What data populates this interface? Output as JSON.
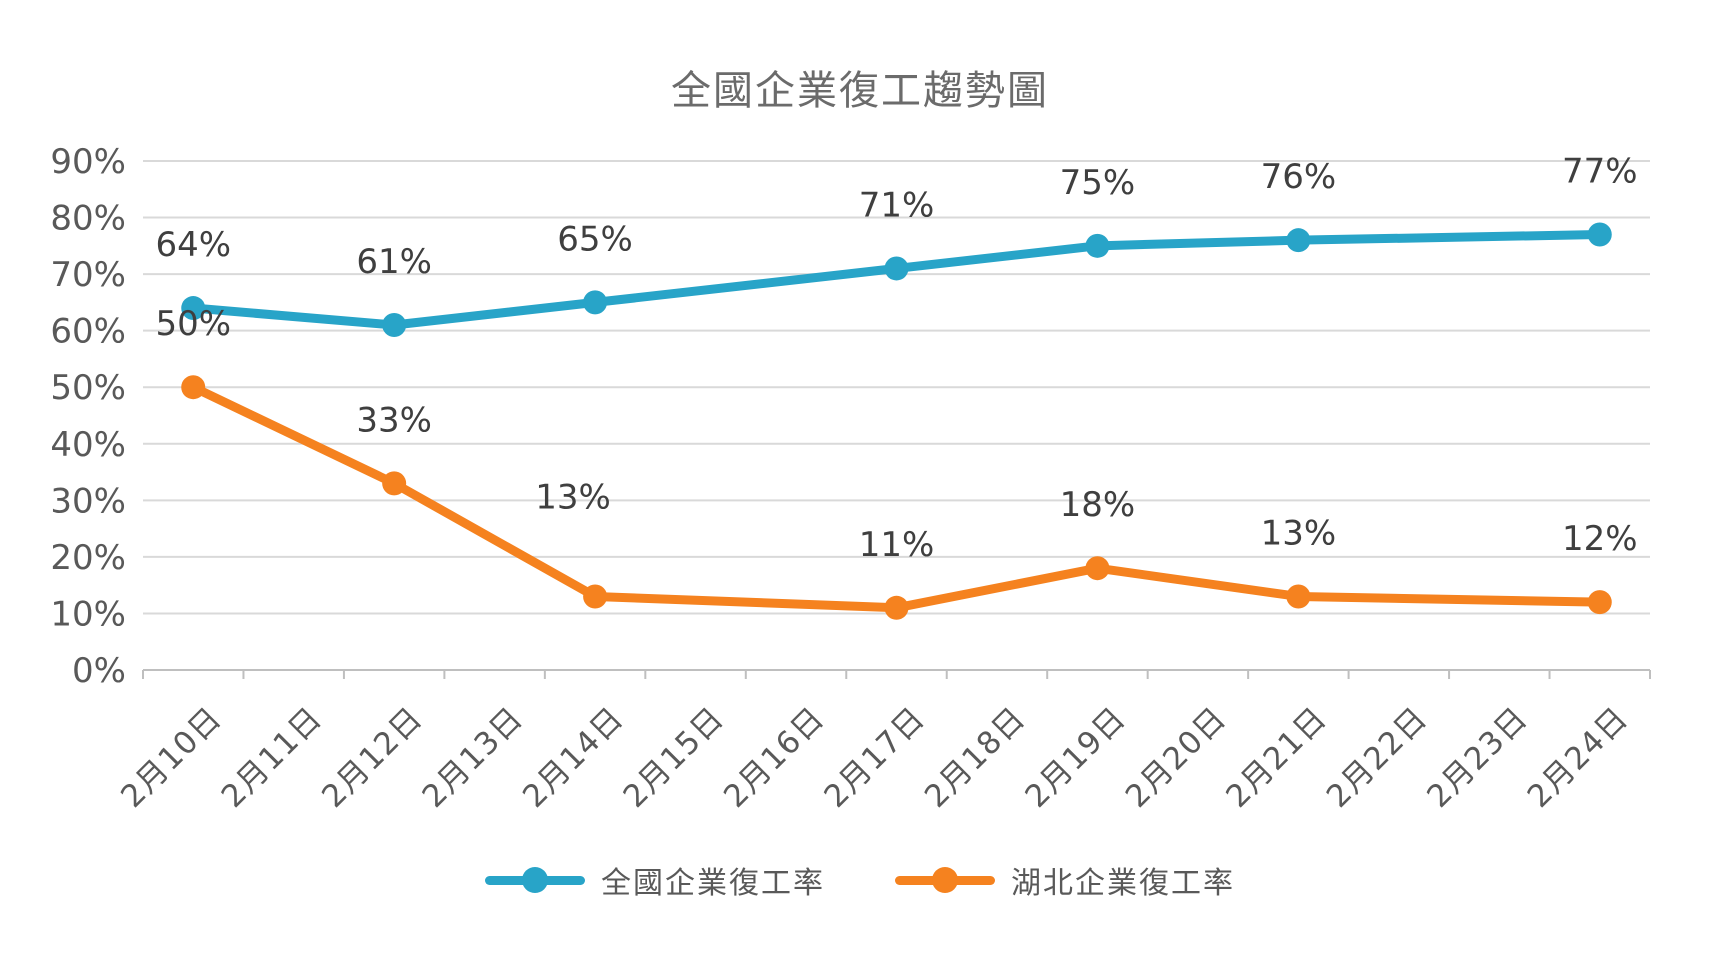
{
  "chart": {
    "title": "全國企業復工趨勢圖"
  },
  "chart_data": {
    "type": "line",
    "title": "全國企業復工趨勢圖",
    "categories": [
      "2月10日",
      "2月11日",
      "2月12日",
      "2月13日",
      "2月14日",
      "2月15日",
      "2月16日",
      "2月17日",
      "2月18日",
      "2月19日",
      "2月20日",
      "2月21日",
      "2月22日",
      "2月23日",
      "2月24日"
    ],
    "y_ticks": [
      "0%",
      "10%",
      "20%",
      "30%",
      "40%",
      "50%",
      "60%",
      "70%",
      "80%",
      "90%"
    ],
    "ylim": [
      0,
      90
    ],
    "grid": true,
    "legend_position": "bottom",
    "series": [
      {
        "name": "全國企業復工率",
        "color": "#28a4c8",
        "points": [
          {
            "category": "2月10日",
            "value": 64,
            "label": "64%"
          },
          {
            "category": "2月12日",
            "value": 61,
            "label": "61%"
          },
          {
            "category": "2月14日",
            "value": 65,
            "label": "65%"
          },
          {
            "category": "2月17日",
            "value": 71,
            "label": "71%"
          },
          {
            "category": "2月19日",
            "value": 75,
            "label": "75%"
          },
          {
            "category": "2月21日",
            "value": 76,
            "label": "76%"
          },
          {
            "category": "2月24日",
            "value": 77,
            "label": "77%"
          }
        ]
      },
      {
        "name": "湖北企業復工率",
        "color": "#f5821f",
        "points": [
          {
            "category": "2月10日",
            "value": 50,
            "label": "50%"
          },
          {
            "category": "2月12日",
            "value": 33,
            "label": "33%"
          },
          {
            "category": "2月14日",
            "value": 13,
            "label": "13%"
          },
          {
            "category": "2月17日",
            "value": 11,
            "label": "11%"
          },
          {
            "category": "2月19日",
            "value": 18,
            "label": "18%"
          },
          {
            "category": "2月21日",
            "value": 13,
            "label": "13%"
          },
          {
            "category": "2月24日",
            "value": 12,
            "label": "12%"
          }
        ]
      }
    ]
  },
  "colors": {
    "national_series": "#28a4c8",
    "hubei_series": "#f5821f",
    "gridline": "#d9d9d9",
    "axis_line": "#bfbfbf",
    "title_text": "#6b6b6b",
    "axis_text": "#595959",
    "data_label_text": "#3f3f3f",
    "background": "#ffffff"
  }
}
